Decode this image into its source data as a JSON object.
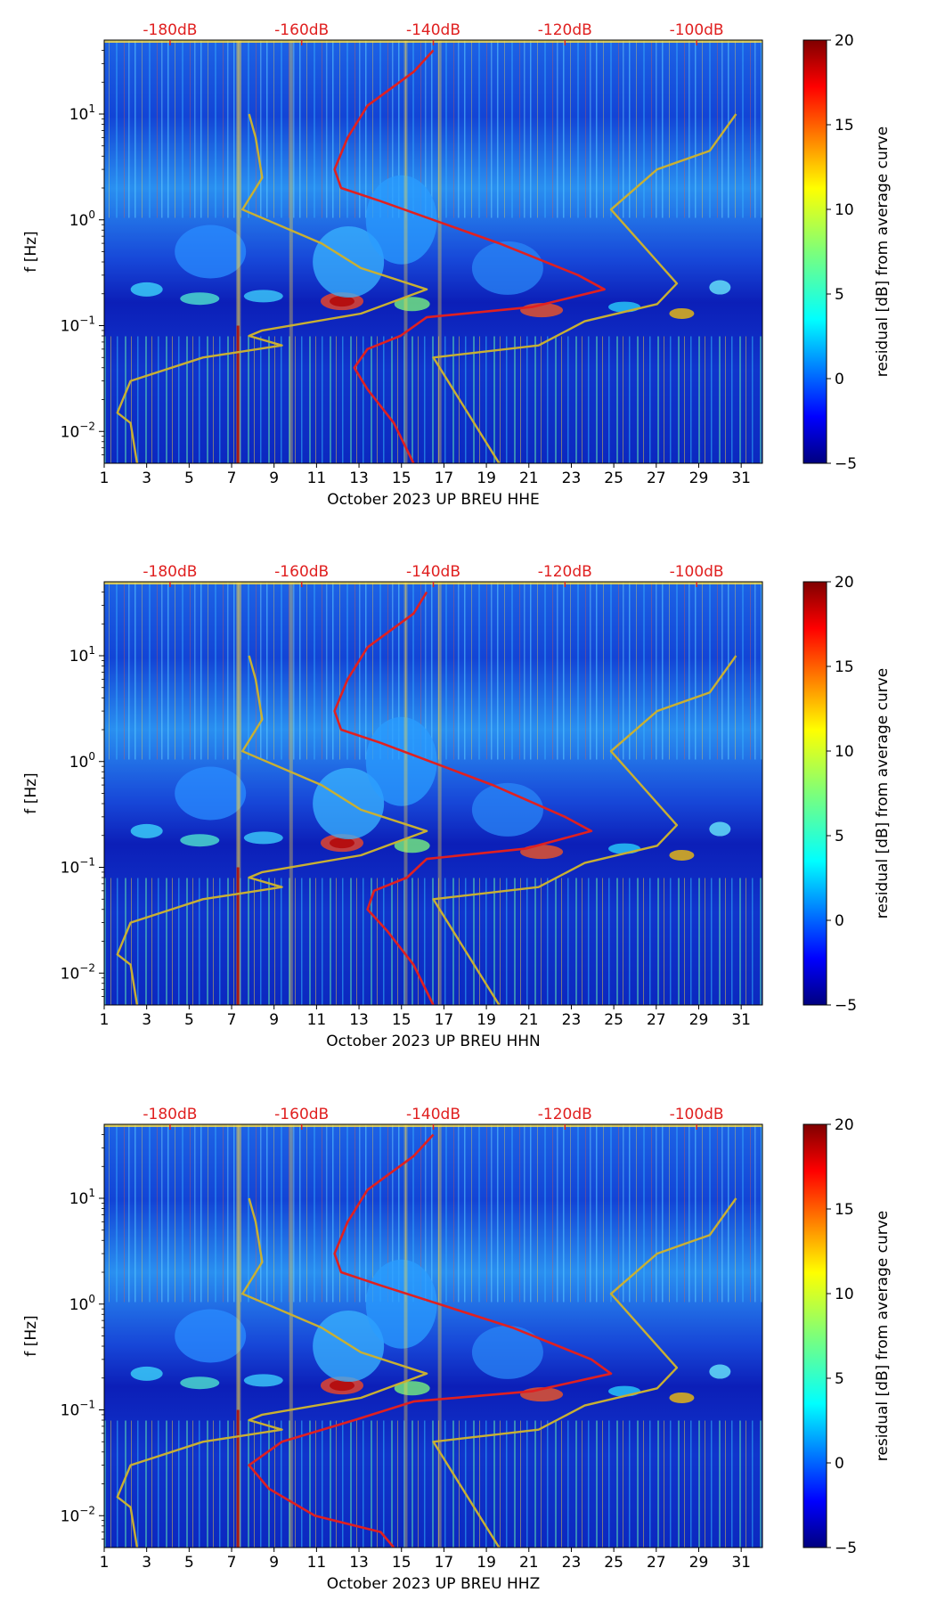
{
  "chart_data": [
    {
      "type": "heatmap",
      "channel": "HHE",
      "xlabel": "October 2023 UP BREU  HHE",
      "ylabel": "f [Hz]",
      "x_ticks": [
        "1",
        "3",
        "5",
        "7",
        "9",
        "11",
        "13",
        "15",
        "17",
        "19",
        "21",
        "23",
        "25",
        "27",
        "29",
        "31"
      ],
      "x_range": [
        1,
        32
      ],
      "y_ticks": [
        {
          "exp": "−2",
          "value": 0.01
        },
        {
          "exp": "−1",
          "value": 0.1
        },
        {
          "exp": "0",
          "value": 1
        },
        {
          "exp": "1",
          "value": 10
        }
      ],
      "y_range": [
        0.005,
        50
      ],
      "y_scale": "log",
      "top_ticks": [
        "-180dB",
        "-160dB",
        "-140dB",
        "-120dB",
        "-100dB"
      ],
      "top_range": [
        -190,
        -90
      ],
      "colorbar": {
        "label": "residual [dB] from average curve",
        "ticks": [
          "20",
          "15",
          "10",
          "5",
          "0",
          "−5"
        ],
        "range": [
          -5,
          20
        ]
      },
      "series": [
        {
          "name": "noise model high (yellow)",
          "color": "#c9b032",
          "points": [
            [
              -94,
              10
            ],
            [
              -98,
              4.5
            ],
            [
              -106,
              3
            ],
            [
              -113,
              1.25
            ],
            [
              -103,
              0.25
            ],
            [
              -106,
              0.16
            ],
            [
              -117,
              0.11
            ],
            [
              -124,
              0.065
            ],
            [
              -140,
              0.05
            ],
            [
              -130,
              0.005
            ]
          ]
        },
        {
          "name": "noise model low (yellow)",
          "color": "#c9b032",
          "points": [
            [
              -168,
              10
            ],
            [
              -167,
              6
            ],
            [
              -166,
              2.5
            ],
            [
              -169,
              1.25
            ],
            [
              -157,
              0.6
            ],
            [
              -151,
              0.35
            ],
            [
              -141,
              0.22
            ],
            [
              -151,
              0.13
            ],
            [
              -166,
              0.09
            ],
            [
              -168,
              0.08
            ],
            [
              -163,
              0.065
            ],
            [
              -175,
              0.05
            ],
            [
              -186,
              0.03
            ],
            [
              -188,
              0.015
            ],
            [
              -186,
              0.012
            ],
            [
              -185,
              0.005
            ]
          ]
        },
        {
          "name": "mean PSD (red)",
          "color": "#e02020",
          "points": [
            [
              -140,
              40
            ],
            [
              -143,
              25
            ],
            [
              -150,
              12
            ],
            [
              -153,
              6
            ],
            [
              -155,
              3
            ],
            [
              -154,
              2
            ],
            [
              -148,
              1.5
            ],
            [
              -130,
              0.6
            ],
            [
              -118,
              0.3
            ],
            [
              -114,
              0.22
            ],
            [
              -125,
              0.15
            ],
            [
              -141,
              0.12
            ],
            [
              -145,
              0.08
            ],
            [
              -150,
              0.06
            ],
            [
              -152,
              0.04
            ],
            [
              -150,
              0.025
            ],
            [
              -146,
              0.012
            ],
            [
              -143,
              0.005
            ]
          ]
        }
      ]
    },
    {
      "type": "heatmap",
      "channel": "HHN",
      "xlabel": "October 2023 UP BREU  HHN",
      "ylabel": "f [Hz]",
      "x_ticks": [
        "1",
        "3",
        "5",
        "7",
        "9",
        "11",
        "13",
        "15",
        "17",
        "19",
        "21",
        "23",
        "25",
        "27",
        "29",
        "31"
      ],
      "x_range": [
        1,
        32
      ],
      "y_ticks": [
        {
          "exp": "−2",
          "value": 0.01
        },
        {
          "exp": "−1",
          "value": 0.1
        },
        {
          "exp": "0",
          "value": 1
        },
        {
          "exp": "1",
          "value": 10
        }
      ],
      "y_range": [
        0.005,
        50
      ],
      "y_scale": "log",
      "top_ticks": [
        "-180dB",
        "-160dB",
        "-140dB",
        "-120dB",
        "-100dB"
      ],
      "top_range": [
        -190,
        -90
      ],
      "colorbar": {
        "label": "residual [dB] from average curve",
        "ticks": [
          "20",
          "15",
          "10",
          "5",
          "0",
          "−5"
        ],
        "range": [
          -5,
          20
        ]
      },
      "series": [
        {
          "name": "noise model high (yellow)",
          "color": "#c9b032",
          "points": [
            [
              -94,
              10
            ],
            [
              -98,
              4.5
            ],
            [
              -106,
              3
            ],
            [
              -113,
              1.25
            ],
            [
              -103,
              0.25
            ],
            [
              -106,
              0.16
            ],
            [
              -117,
              0.11
            ],
            [
              -124,
              0.065
            ],
            [
              -140,
              0.05
            ],
            [
              -130,
              0.005
            ]
          ]
        },
        {
          "name": "noise model low (yellow)",
          "color": "#c9b032",
          "points": [
            [
              -168,
              10
            ],
            [
              -167,
              6
            ],
            [
              -166,
              2.5
            ],
            [
              -169,
              1.25
            ],
            [
              -157,
              0.6
            ],
            [
              -151,
              0.35
            ],
            [
              -141,
              0.22
            ],
            [
              -151,
              0.13
            ],
            [
              -166,
              0.09
            ],
            [
              -168,
              0.08
            ],
            [
              -163,
              0.065
            ],
            [
              -175,
              0.05
            ],
            [
              -186,
              0.03
            ],
            [
              -188,
              0.015
            ],
            [
              -186,
              0.012
            ],
            [
              -185,
              0.005
            ]
          ]
        },
        {
          "name": "mean PSD (red)",
          "color": "#e02020",
          "points": [
            [
              -141,
              40
            ],
            [
              -143,
              25
            ],
            [
              -150,
              12
            ],
            [
              -153,
              6
            ],
            [
              -155,
              3
            ],
            [
              -154,
              2
            ],
            [
              -148,
              1.5
            ],
            [
              -131,
              0.6
            ],
            [
              -120,
              0.3
            ],
            [
              -116,
              0.22
            ],
            [
              -126,
              0.15
            ],
            [
              -141,
              0.12
            ],
            [
              -144,
              0.08
            ],
            [
              -149,
              0.06
            ],
            [
              -150,
              0.04
            ],
            [
              -147,
              0.025
            ],
            [
              -143,
              0.012
            ],
            [
              -140,
              0.005
            ]
          ]
        }
      ]
    },
    {
      "type": "heatmap",
      "channel": "HHZ",
      "xlabel": "October 2023 UP BREU  HHZ",
      "ylabel": "f [Hz]",
      "x_ticks": [
        "1",
        "3",
        "5",
        "7",
        "9",
        "11",
        "13",
        "15",
        "17",
        "19",
        "21",
        "23",
        "25",
        "27",
        "29",
        "31"
      ],
      "x_range": [
        1,
        32
      ],
      "y_ticks": [
        {
          "exp": "−2",
          "value": 0.01
        },
        {
          "exp": "−1",
          "value": 0.1
        },
        {
          "exp": "0",
          "value": 1
        },
        {
          "exp": "1",
          "value": 10
        }
      ],
      "y_range": [
        0.005,
        50
      ],
      "y_scale": "log",
      "top_ticks": [
        "-180dB",
        "-160dB",
        "-140dB",
        "-120dB",
        "-100dB"
      ],
      "top_range": [
        -190,
        -90
      ],
      "colorbar": {
        "label": "residual [dB] from average curve",
        "ticks": [
          "20",
          "15",
          "10",
          "5",
          "0",
          "−5"
        ],
        "range": [
          -5,
          20
        ]
      },
      "series": [
        {
          "name": "noise model high (yellow)",
          "color": "#c9b032",
          "points": [
            [
              -94,
              10
            ],
            [
              -98,
              4.5
            ],
            [
              -106,
              3
            ],
            [
              -113,
              1.25
            ],
            [
              -103,
              0.25
            ],
            [
              -106,
              0.16
            ],
            [
              -117,
              0.11
            ],
            [
              -124,
              0.065
            ],
            [
              -140,
              0.05
            ],
            [
              -130,
              0.005
            ]
          ]
        },
        {
          "name": "noise model low (yellow)",
          "color": "#c9b032",
          "points": [
            [
              -168,
              10
            ],
            [
              -167,
              6
            ],
            [
              -166,
              2.5
            ],
            [
              -169,
              1.25
            ],
            [
              -157,
              0.6
            ],
            [
              -151,
              0.35
            ],
            [
              -141,
              0.22
            ],
            [
              -151,
              0.13
            ],
            [
              -166,
              0.09
            ],
            [
              -168,
              0.08
            ],
            [
              -163,
              0.065
            ],
            [
              -175,
              0.05
            ],
            [
              -186,
              0.03
            ],
            [
              -188,
              0.015
            ],
            [
              -186,
              0.012
            ],
            [
              -185,
              0.005
            ]
          ]
        },
        {
          "name": "mean PSD (red)",
          "color": "#e02020",
          "points": [
            [
              -140,
              40
            ],
            [
              -143,
              25
            ],
            [
              -150,
              12
            ],
            [
              -153,
              6
            ],
            [
              -155,
              3
            ],
            [
              -154,
              2
            ],
            [
              -148,
              1.5
            ],
            [
              -128,
              0.6
            ],
            [
              -116,
              0.3
            ],
            [
              -113,
              0.22
            ],
            [
              -125,
              0.15
            ],
            [
              -143,
              0.12
            ],
            [
              -152,
              0.08
            ],
            [
              -163,
              0.05
            ],
            [
              -168,
              0.03
            ],
            [
              -165,
              0.018
            ],
            [
              -158,
              0.01
            ],
            [
              -148,
              0.007
            ],
            [
              -146,
              0.005
            ]
          ]
        }
      ]
    }
  ]
}
